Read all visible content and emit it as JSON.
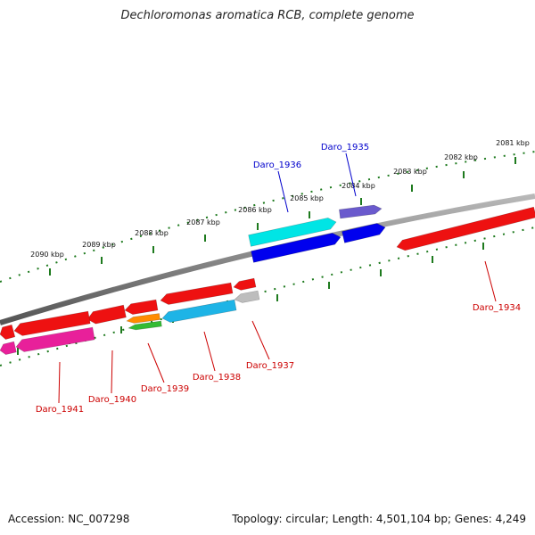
{
  "title": "Dechloromonas aromatica RCB, complete genome",
  "accession_text": "Accession: NC_007298",
  "summary_text": "Topology: circular; Length: 4,501,104 bp; Genes: 4,249",
  "scale_labels": [
    "2081 kbp",
    "2082 kbp",
    "2083 kbp",
    "2084 kbp",
    "2085 kbp",
    "2086 kbp",
    "2087 kbp",
    "2088 kbp",
    "2089 kbp",
    "2090 kbp"
  ],
  "genes": {
    "forward": [
      {
        "label": "Daro_1936",
        "color": "#00e5e5"
      },
      {
        "label": "Daro_1935",
        "color": "#6a5acd"
      }
    ],
    "reverse": [
      {
        "label": "Daro_1934",
        "color": "#ee1111"
      },
      {
        "label": "Daro_1937",
        "color": "#bdbdbd"
      },
      {
        "label": "Daro_1938",
        "color": "#1eb4e6"
      },
      {
        "label": "Daro_1939",
        "color": "#ff8c00"
      },
      {
        "label": "Daro_1940",
        "color": "#ee1111"
      },
      {
        "label": "Daro_1941",
        "color": "#e8209a"
      }
    ]
  },
  "colors": {
    "forward_label": "#0000cc",
    "reverse_label": "#cc0000",
    "scale_ticks": "#1e7a1e",
    "backbone": "#7a7a7a"
  }
}
